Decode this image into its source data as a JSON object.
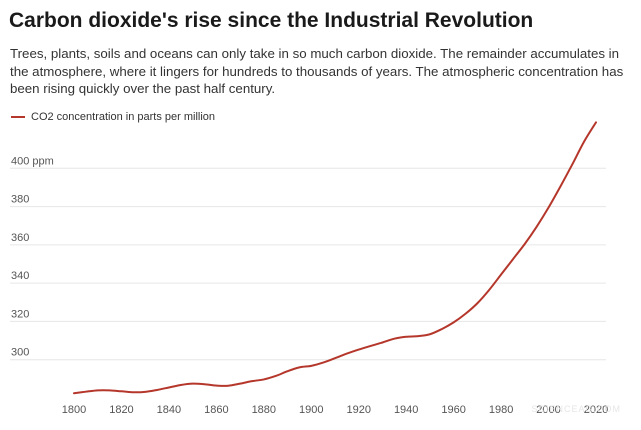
{
  "title": "Carbon dioxide's rise since the Industrial Revolution",
  "subtitle": "Trees, plants, soils and oceans can only take in so much carbon dioxide. The remainder accumulates in the atmosphere, where it lingers for hundreds to thousands of years. The atmospheric concentration has been rising quickly over the past half century.",
  "watermark": "SCIENCEAG.COM",
  "colors": {
    "line": "#b5372b",
    "grid": "#e6e6e6",
    "text": "#555555"
  },
  "chart_data": {
    "type": "line",
    "title": "Carbon dioxide's rise since the Industrial Revolution",
    "xlabel": "",
    "ylabel": "",
    "xlim": [
      1800,
      2020
    ],
    "ylim": [
      280,
      420
    ],
    "legend_position": "top-left",
    "grid": true,
    "x_ticks": [
      1800,
      1820,
      1840,
      1860,
      1880,
      1900,
      1920,
      1940,
      1960,
      1980,
      2000,
      2020
    ],
    "x_tick_labels": [
      "1800",
      "1820",
      "1840",
      "1860",
      "1880",
      "1900",
      "1920",
      "1940",
      "1960",
      "1980",
      "2000",
      "2020"
    ],
    "y_ticks": [
      300,
      320,
      340,
      360,
      380,
      400
    ],
    "y_tick_labels": [
      "300",
      "320",
      "340",
      "360",
      "380",
      "400 ppm"
    ],
    "series": [
      {
        "name": "CO2 concentration in parts per million",
        "x": [
          1800,
          1805,
          1810,
          1815,
          1820,
          1825,
          1830,
          1835,
          1840,
          1845,
          1850,
          1855,
          1860,
          1865,
          1870,
          1875,
          1880,
          1885,
          1890,
          1895,
          1900,
          1905,
          1910,
          1915,
          1920,
          1925,
          1930,
          1935,
          1940,
          1945,
          1950,
          1955,
          1960,
          1965,
          1970,
          1975,
          1980,
          1985,
          1990,
          1995,
          2000,
          2005,
          2010,
          2015,
          2020
        ],
        "values": [
          282.5,
          283.3,
          284.0,
          284.0,
          283.5,
          283.0,
          283.2,
          284.2,
          285.5,
          286.8,
          287.5,
          287.2,
          286.5,
          286.4,
          287.5,
          288.8,
          289.7,
          291.5,
          294.0,
          296.0,
          296.8,
          298.5,
          300.8,
          303.2,
          305.3,
          307.2,
          309.0,
          311.0,
          312.0,
          312.3,
          313.3,
          316.0,
          319.5,
          324.0,
          329.5,
          336.5,
          344.5,
          352.5,
          360.5,
          369.5,
          379.5,
          390.5,
          402.0,
          414.0,
          424.0
        ]
      }
    ]
  }
}
